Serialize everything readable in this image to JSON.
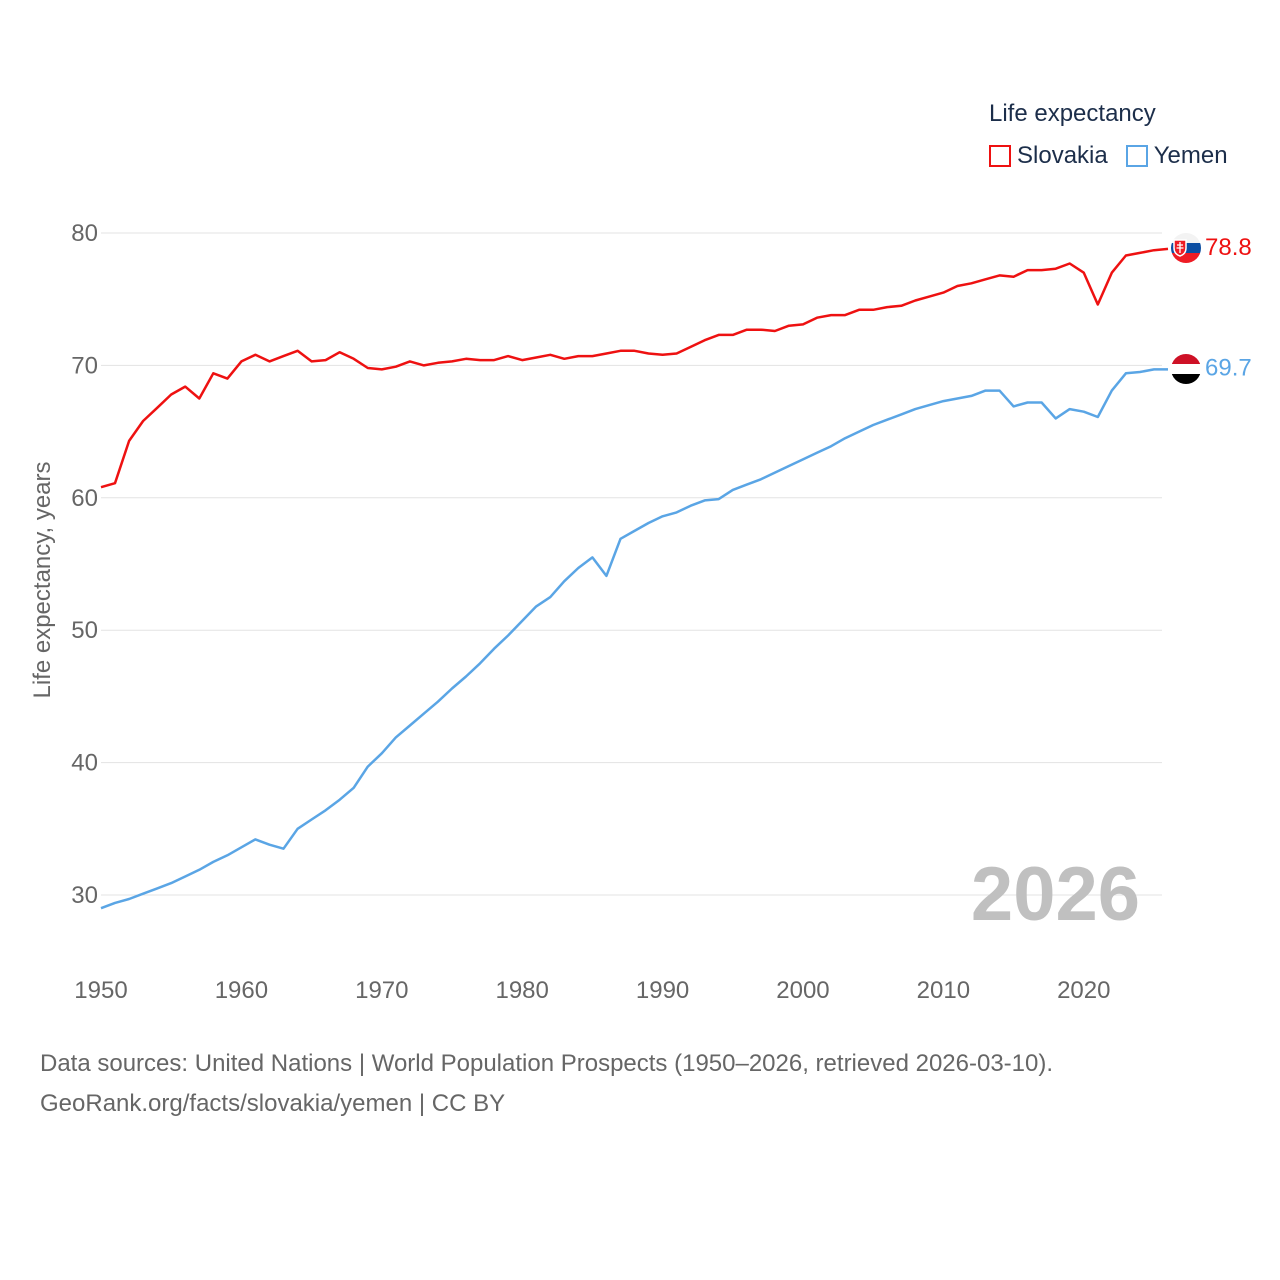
{
  "legend": {
    "title": "Life expectancy",
    "items": [
      {
        "name": "Slovakia",
        "color": "#ee1111"
      },
      {
        "name": "Yemen",
        "color": "#5aa5e5"
      }
    ]
  },
  "chart_data": {
    "type": "line",
    "ylabel": "Life expectancy, years",
    "xlabel": "",
    "ylim": [
      25,
      82
    ],
    "xlim": [
      1950,
      2026
    ],
    "yticks": [
      30,
      40,
      50,
      60,
      70,
      80
    ],
    "xticks": [
      1950,
      1960,
      1970,
      1980,
      1990,
      2000,
      2010,
      2020
    ],
    "grid": true,
    "year_watermark": "2026",
    "x": [
      1950,
      1951,
      1952,
      1953,
      1954,
      1955,
      1956,
      1957,
      1958,
      1959,
      1960,
      1961,
      1962,
      1963,
      1964,
      1965,
      1966,
      1967,
      1968,
      1969,
      1970,
      1971,
      1972,
      1973,
      1974,
      1975,
      1976,
      1977,
      1978,
      1979,
      1980,
      1981,
      1982,
      1983,
      1984,
      1985,
      1986,
      1987,
      1988,
      1989,
      1990,
      1991,
      1992,
      1993,
      1994,
      1995,
      1996,
      1997,
      1998,
      1999,
      2000,
      2001,
      2002,
      2003,
      2004,
      2005,
      2006,
      2007,
      2008,
      2009,
      2010,
      2011,
      2012,
      2013,
      2014,
      2015,
      2016,
      2017,
      2018,
      2019,
      2020,
      2021,
      2022,
      2023,
      2024,
      2025,
      2026
    ],
    "series": [
      {
        "name": "Slovakia",
        "color": "#ee1111",
        "end_label": "78.8",
        "values": [
          60.8,
          61.1,
          64.3,
          65.8,
          66.8,
          67.8,
          68.4,
          67.5,
          69.4,
          69.0,
          70.3,
          70.8,
          70.3,
          70.7,
          71.1,
          70.3,
          70.4,
          71.0,
          70.5,
          69.8,
          69.7,
          69.9,
          70.3,
          70.0,
          70.2,
          70.3,
          70.5,
          70.4,
          70.4,
          70.7,
          70.4,
          70.6,
          70.8,
          70.5,
          70.7,
          70.7,
          70.9,
          71.1,
          71.1,
          70.9,
          70.8,
          70.9,
          71.4,
          71.9,
          72.3,
          72.3,
          72.7,
          72.7,
          72.6,
          73.0,
          73.1,
          73.6,
          73.8,
          73.8,
          74.2,
          74.2,
          74.4,
          74.5,
          74.9,
          75.2,
          75.5,
          76.0,
          76.2,
          76.5,
          76.8,
          76.7,
          77.2,
          77.2,
          77.3,
          77.7,
          77.0,
          74.6,
          77.0,
          78.3,
          78.5,
          78.7,
          78.8
        ]
      },
      {
        "name": "Yemen",
        "color": "#5aa5e5",
        "end_label": "69.7",
        "values": [
          29.0,
          29.4,
          29.7,
          30.1,
          30.5,
          30.9,
          31.4,
          31.9,
          32.5,
          33.0,
          33.6,
          34.2,
          33.8,
          33.5,
          35.0,
          35.7,
          36.4,
          37.2,
          38.1,
          39.7,
          40.7,
          41.9,
          42.8,
          43.7,
          44.6,
          45.6,
          46.5,
          47.5,
          48.6,
          49.6,
          50.7,
          51.8,
          52.5,
          53.7,
          54.7,
          55.5,
          54.1,
          56.9,
          57.5,
          58.1,
          58.6,
          58.9,
          59.4,
          59.8,
          59.9,
          60.6,
          61.0,
          61.4,
          61.9,
          62.4,
          62.9,
          63.4,
          63.9,
          64.5,
          65.0,
          65.5,
          65.9,
          66.3,
          66.7,
          67.0,
          67.3,
          67.5,
          67.7,
          68.1,
          68.1,
          66.9,
          67.2,
          67.2,
          66.0,
          66.7,
          66.5,
          66.1,
          68.1,
          69.4,
          69.5,
          69.7,
          69.7
        ]
      }
    ]
  },
  "footer": {
    "line1": "Data sources: United Nations | World Population Prospects (1950–2026, retrieved 2026-03-10).",
    "line2": "GeoRank.org/facts/slovakia/yemen | CC BY"
  }
}
